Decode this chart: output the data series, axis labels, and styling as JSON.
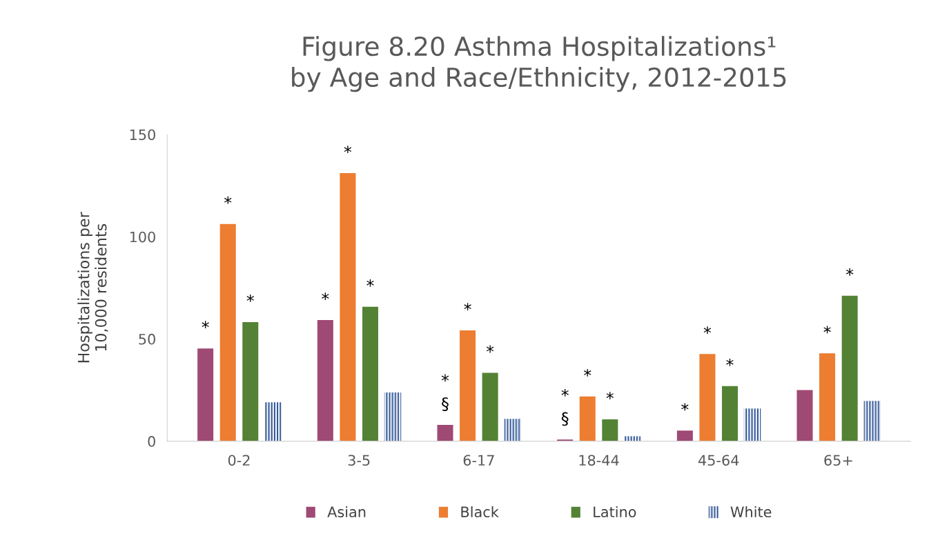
{
  "chart_data": {
    "type": "bar",
    "title": "Figure 8.20 Asthma Hospitalizations¹\nby Age and Race/Ethnicity, 2012-2015",
    "ylabel": "Hospitalizations per\n10,000 residents",
    "categories": [
      "0-2",
      "3-5",
      "6-17",
      "18-44",
      "45-64",
      "65+"
    ],
    "series": [
      {
        "name": "Asian",
        "color": "#9e4a74",
        "values": [
          45.6,
          59.5,
          8.2,
          1,
          5.4,
          25.2
        ],
        "value_labels": [
          "*",
          "*",
          "*\n§",
          "*\n§",
          "*",
          null
        ]
      },
      {
        "name": "Black",
        "color": "#ed7d31",
        "values": [
          106.5,
          131.3,
          54.4,
          22.1,
          42.9,
          43.2
        ],
        "value_labels": [
          "*",
          "*",
          "*",
          "*",
          "*",
          "*"
        ]
      },
      {
        "name": "Latino",
        "color": "#548235",
        "values": [
          58.5,
          66,
          33.7,
          10.9,
          27.2,
          71.4
        ],
        "value_labels": [
          "*",
          "*",
          "*",
          "*",
          "*",
          "*"
        ]
      },
      {
        "name": "White",
        "color": "#2f5597",
        "values": [
          19,
          23.8,
          10.9,
          2.4,
          16,
          19.7
        ]
      }
    ],
    "ylim": [
      0,
      150
    ],
    "yticks": [
      0,
      50,
      100,
      150
    ],
    "grid": false,
    "legend": "bottom"
  }
}
